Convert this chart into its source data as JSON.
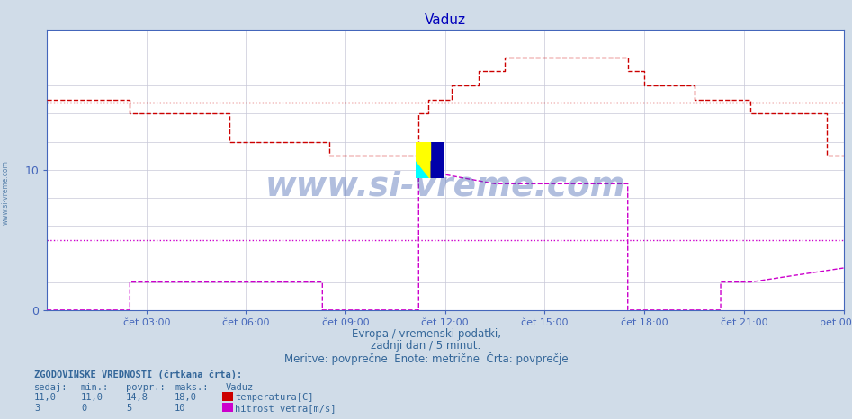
{
  "title": "Vaduz",
  "bg_color": "#d0dce8",
  "plot_bg_color": "#ffffff",
  "grid_color": "#c8c8d8",
  "title_color": "#0000bb",
  "axis_color": "#4466bb",
  "text_color": "#336699",
  "temp_color": "#cc0000",
  "wind_color": "#cc00cc",
  "ymax": 20,
  "ymin": 0,
  "x_labels": [
    "čet 03:00",
    "čet 06:00",
    "čet 09:00",
    "čet 12:00",
    "čet 15:00",
    "čet 18:00",
    "čet 21:00",
    "pet 00:00"
  ],
  "x_ticks": [
    3,
    6,
    9,
    12,
    15,
    18,
    21,
    24
  ],
  "temp_avg": 14.8,
  "wind_avg": 5.0,
  "temp_x": [
    0,
    2.5,
    2.5,
    5.5,
    5.5,
    8.5,
    8.5,
    9.2,
    9.2,
    11.2,
    11.2,
    11.5,
    11.5,
    12.2,
    12.2,
    13.0,
    13.0,
    13.8,
    13.8,
    14.5,
    14.5,
    17.5,
    17.5,
    18.0,
    18.0,
    19.5,
    19.5,
    20.3,
    20.3,
    21.2,
    21.2,
    23.5,
    23.5,
    24
  ],
  "temp_y": [
    15,
    15,
    14,
    14,
    12,
    12,
    11,
    11,
    11,
    11,
    14,
    14,
    15,
    15,
    16,
    16,
    17,
    17,
    18,
    18,
    18,
    18,
    17,
    17,
    16,
    16,
    15,
    15,
    15,
    15,
    14,
    14,
    11,
    11
  ],
  "wind_x": [
    0,
    0.1,
    0.1,
    2.5,
    2.5,
    3.5,
    3.5,
    8.3,
    8.3,
    9.0,
    9.0,
    11.2,
    11.2,
    13.5,
    13.5,
    17.5,
    17.5,
    18.3,
    18.3,
    20.3,
    20.3,
    21.2,
    21.2,
    24
  ],
  "wind_y": [
    0,
    0,
    0,
    0,
    2,
    2,
    2,
    2,
    0,
    0,
    0,
    0,
    10,
    9,
    9,
    9,
    0,
    0,
    0,
    0,
    2,
    2,
    2,
    3
  ],
  "footer_line1": "Evropa / vremenski podatki,",
  "footer_line2": "zadnji dan / 5 minut.",
  "footer_line3": "Meritve: povprečne  Enote: metrične  Črta: povprečje",
  "legend_title": "ZGODOVINSKE VREDNOSTI (črtkana črta):",
  "col_headers": [
    "sedaj:",
    "min.:",
    "povpr.:",
    "maks.:",
    "Vaduz"
  ],
  "row1_vals": [
    "11,0",
    "11,0",
    "14,8",
    "18,0"
  ],
  "row1_label": "temperatura[C]",
  "row2_vals": [
    "3",
    "0",
    "5",
    "10"
  ],
  "row2_label": "hitrost vetra[m/s]",
  "watermark": "www.si-vreme.com",
  "side_watermark": "www.si-vreme.com"
}
